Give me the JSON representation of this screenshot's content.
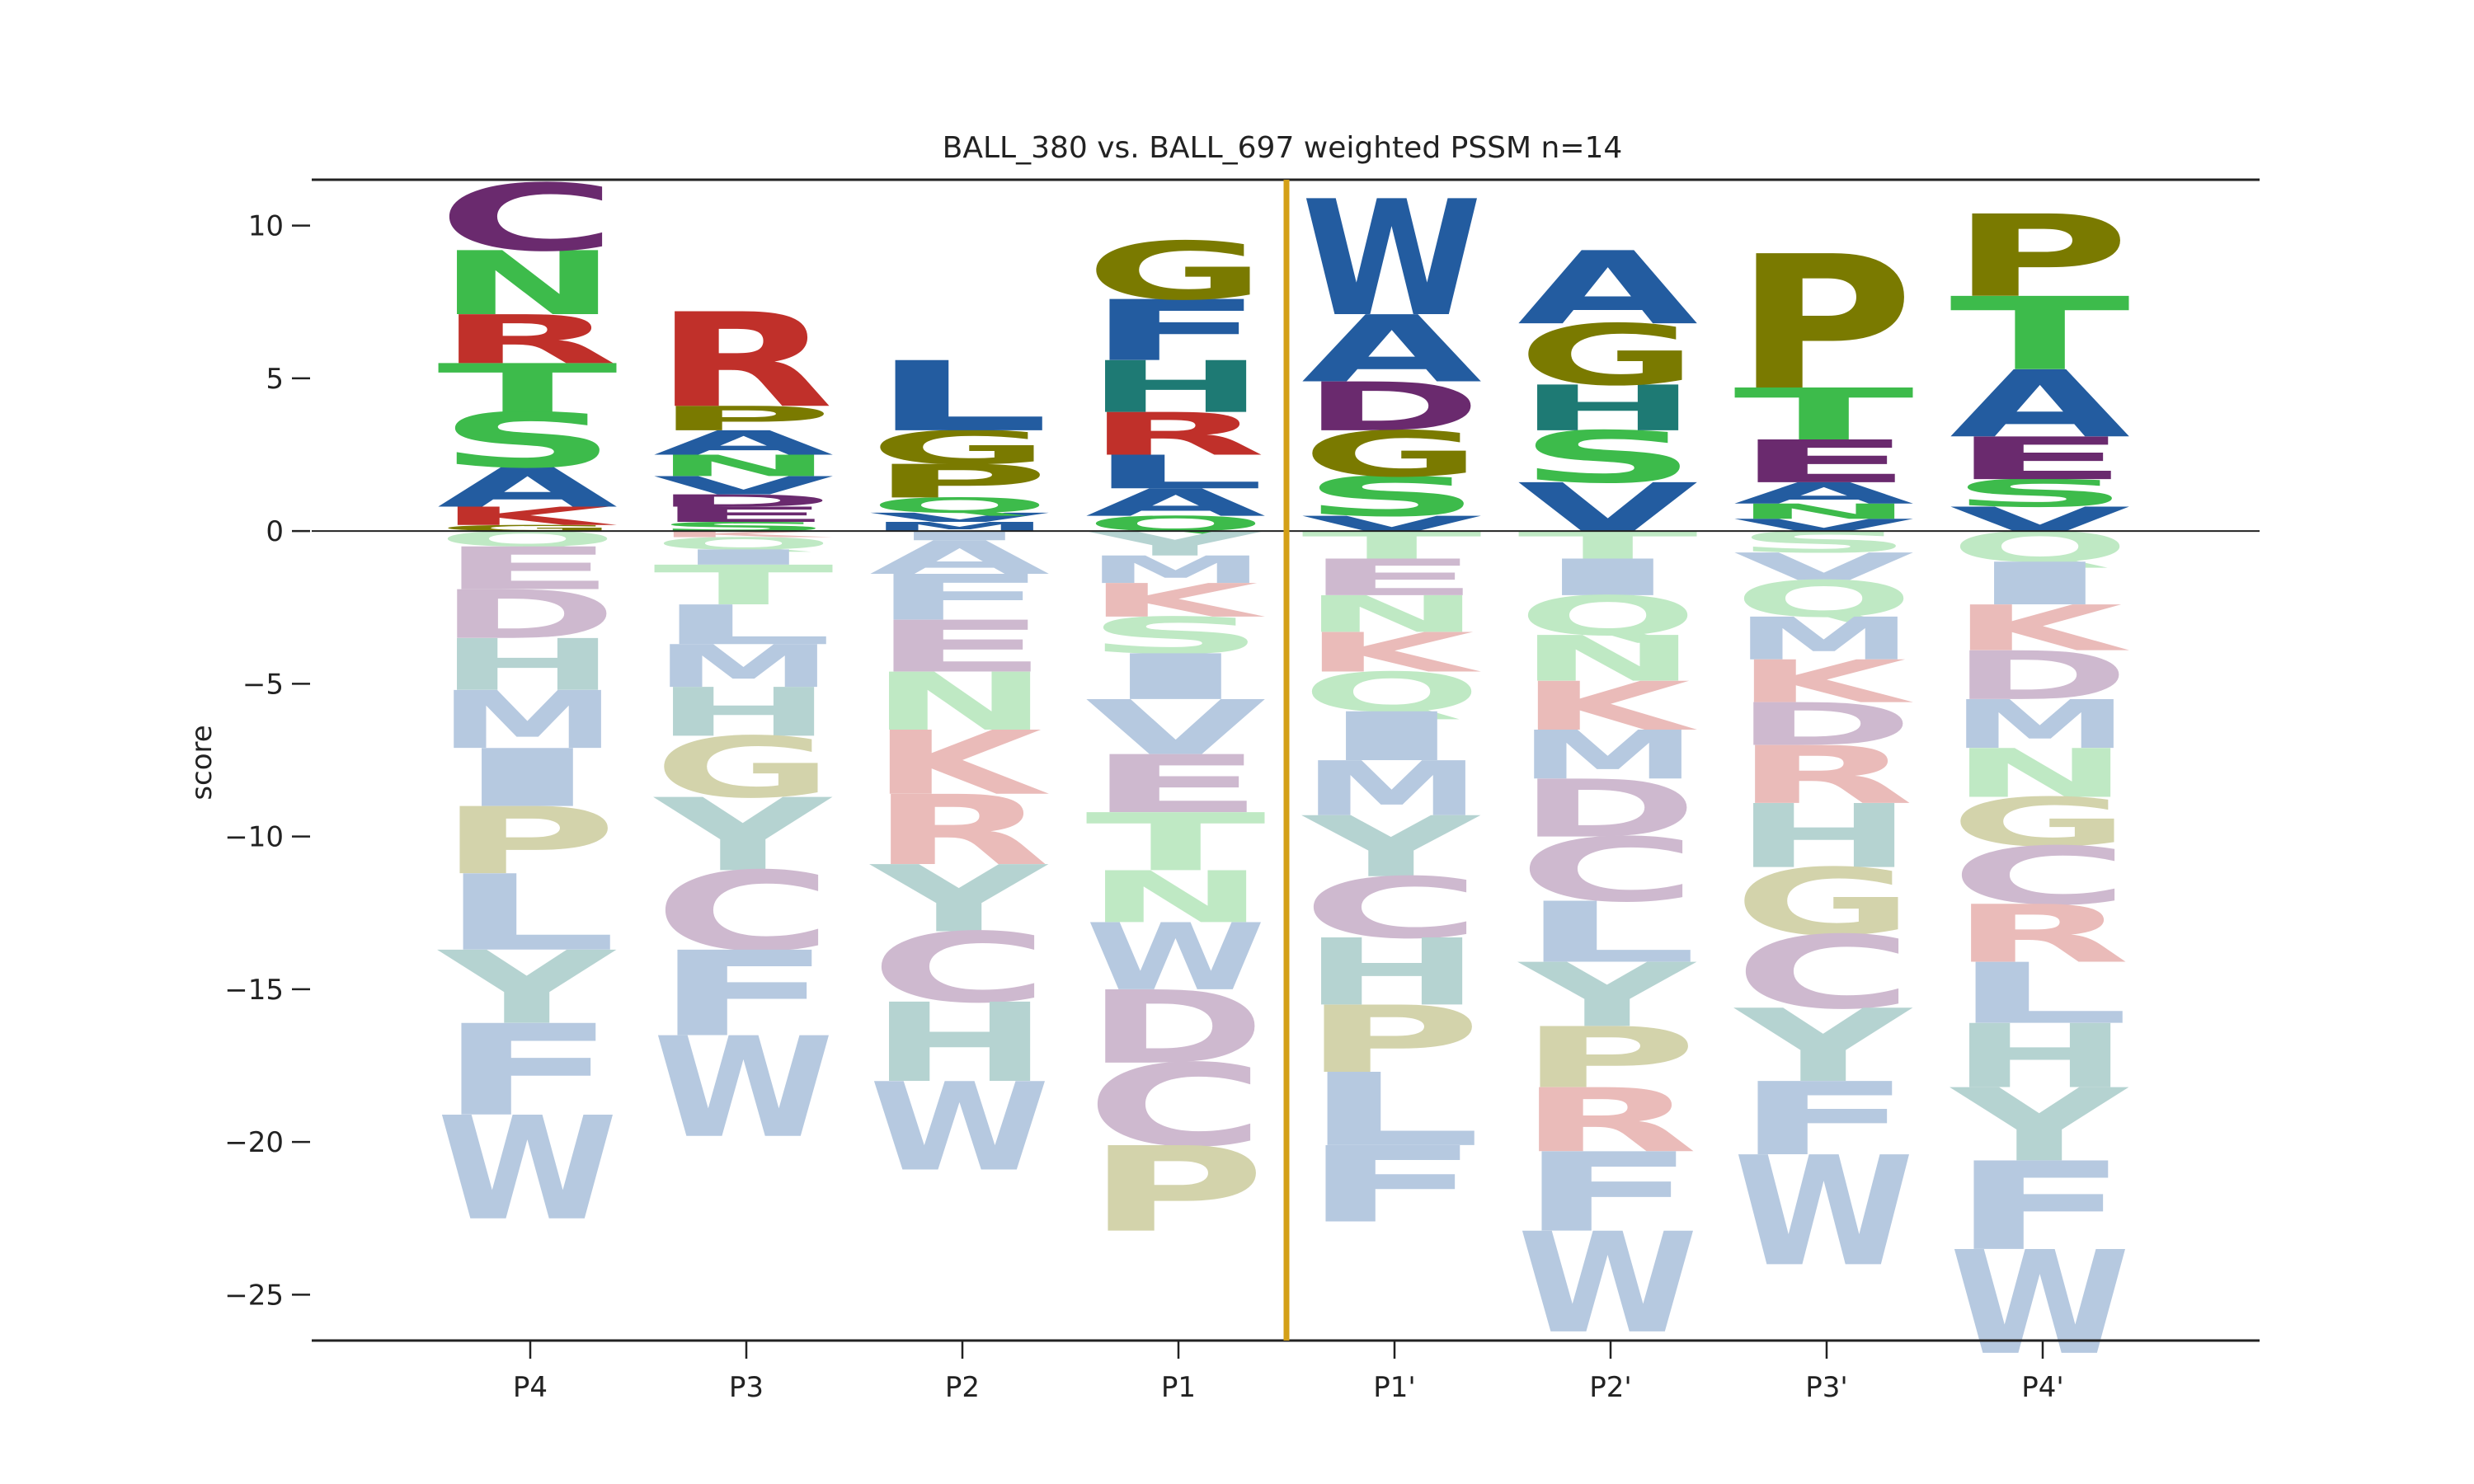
{
  "chart_data": {
    "type": "sequence-logo",
    "title": "BALL_380 vs. BALL_697 weighted PSSM n=14",
    "ylabel": "score",
    "xlabel": "",
    "ylim": [
      -26.5,
      11.5
    ],
    "yticks": [
      10,
      5,
      0,
      -5,
      -10,
      -15,
      -20,
      -25
    ],
    "ytick_labels": [
      "10",
      "5",
      "0",
      "−5",
      "−10",
      "−15",
      "−20",
      "−25"
    ],
    "cleavage_line_color": "#D4A017",
    "colors": {
      "A": "#235CA0",
      "C": "#6A2A6E",
      "D": "#6A2A6E",
      "E": "#6A2A6E",
      "F": "#235CA0",
      "G": "#7A7A00",
      "H": "#1E7A74",
      "I": "#235CA0",
      "K": "#C0302A",
      "L": "#235CA0",
      "M": "#235CA0",
      "N": "#3DBB4B",
      "P": "#7A7A00",
      "Q": "#3DBB4B",
      "R": "#C0302A",
      "S": "#3DBB4B",
      "T": "#3DBB4B",
      "V": "#235CA0",
      "W": "#235CA0",
      "Y": "#1E7A74"
    },
    "positions": [
      {
        "name": "P4",
        "positive": [
          [
            "G",
            0.2
          ],
          [
            "K",
            0.6
          ],
          [
            "A",
            1.3
          ],
          [
            "S",
            1.8
          ],
          [
            "T",
            1.6
          ],
          [
            "R",
            1.6
          ],
          [
            "N",
            2.1
          ],
          [
            "C",
            2.2
          ]
        ],
        "negative": [
          [
            "Q",
            0.5
          ],
          [
            "E",
            1.4
          ],
          [
            "D",
            1.6
          ],
          [
            "H",
            1.7
          ],
          [
            "M",
            1.9
          ],
          [
            "I",
            1.9
          ],
          [
            "P",
            2.2
          ],
          [
            "L",
            2.5
          ],
          [
            "Y",
            2.4
          ],
          [
            "F",
            3.0
          ],
          [
            "W",
            3.4
          ]
        ]
      },
      {
        "name": "P3",
        "positive": [
          [
            "S",
            0.3
          ],
          [
            "E",
            0.5
          ],
          [
            "D",
            0.4
          ],
          [
            "V",
            0.6
          ],
          [
            "N",
            0.7
          ],
          [
            "A",
            0.8
          ],
          [
            "P",
            0.8
          ],
          [
            "R",
            3.1
          ]
        ],
        "negative": [
          [
            "K",
            0.2
          ],
          [
            "Q",
            0.4
          ],
          [
            "I",
            0.5
          ],
          [
            "T",
            1.3
          ],
          [
            "L",
            1.3
          ],
          [
            "M",
            1.4
          ],
          [
            "H",
            1.6
          ],
          [
            "G",
            2.0
          ],
          [
            "Y",
            2.4
          ],
          [
            "C",
            2.6
          ],
          [
            "F",
            2.8
          ],
          [
            "W",
            3.3
          ]
        ]
      },
      {
        "name": "P2",
        "positive": [
          [
            "M",
            0.3
          ],
          [
            "V",
            0.3
          ],
          [
            "Q",
            0.5
          ],
          [
            "P",
            1.1
          ],
          [
            "G",
            1.1
          ],
          [
            "L",
            2.3
          ]
        ],
        "negative": [
          [
            "I",
            0.3
          ],
          [
            "A",
            1.1
          ],
          [
            "F",
            1.5
          ],
          [
            "E",
            1.7
          ],
          [
            "N",
            1.9
          ],
          [
            "K",
            2.1
          ],
          [
            "R",
            2.3
          ],
          [
            "Y",
            2.2
          ],
          [
            "C",
            2.3
          ],
          [
            "H",
            2.6
          ],
          [
            "W",
            2.9
          ]
        ]
      },
      {
        "name": "P1",
        "positive": [
          [
            "Q",
            0.5
          ],
          [
            "A",
            0.9
          ],
          [
            "L",
            1.1
          ],
          [
            "R",
            1.4
          ],
          [
            "H",
            1.7
          ],
          [
            "F",
            2.0
          ],
          [
            "G",
            1.9
          ]
        ],
        "negative": [
          [
            "Y",
            0.8
          ],
          [
            "M",
            0.9
          ],
          [
            "K",
            1.1
          ],
          [
            "S",
            1.2
          ],
          [
            "I",
            1.5
          ],
          [
            "V",
            1.8
          ],
          [
            "E",
            1.9
          ],
          [
            "T",
            1.9
          ],
          [
            "N",
            1.7
          ],
          [
            "W",
            2.2
          ],
          [
            "D",
            2.4
          ],
          [
            "C",
            2.7
          ],
          [
            "P",
            2.8
          ]
        ]
      },
      {
        "name": "P1'",
        "positive": [
          [
            "V",
            0.5
          ],
          [
            "S",
            1.3
          ],
          [
            "G",
            1.5
          ],
          [
            "D",
            1.6
          ],
          [
            "A",
            2.2
          ],
          [
            "W",
            3.8
          ]
        ],
        "negative": [
          [
            "T",
            0.9
          ],
          [
            "E",
            1.2
          ],
          [
            "N",
            1.2
          ],
          [
            "K",
            1.3
          ],
          [
            "Q",
            1.3
          ],
          [
            "I",
            1.6
          ],
          [
            "M",
            1.8
          ],
          [
            "Y",
            2.0
          ],
          [
            "C",
            2.0
          ],
          [
            "H",
            2.2
          ],
          [
            "P",
            2.2
          ],
          [
            "L",
            2.4
          ],
          [
            "F",
            2.5
          ]
        ]
      },
      {
        "name": "P2'",
        "positive": [
          [
            "V",
            1.6
          ],
          [
            "S",
            1.7
          ],
          [
            "H",
            1.5
          ],
          [
            "G",
            2.0
          ],
          [
            "A",
            2.4
          ]
        ],
        "negative": [
          [
            "T",
            0.9
          ],
          [
            "I",
            1.2
          ],
          [
            "Q",
            1.3
          ],
          [
            "N",
            1.5
          ],
          [
            "K",
            1.6
          ],
          [
            "M",
            1.6
          ],
          [
            "D",
            1.9
          ],
          [
            "C",
            2.1
          ],
          [
            "L",
            2.0
          ],
          [
            "Y",
            2.1
          ],
          [
            "P",
            2.0
          ],
          [
            "R",
            2.1
          ],
          [
            "F",
            2.6
          ],
          [
            "W",
            3.3
          ]
        ]
      },
      {
        "name": "P3'",
        "positive": [
          [
            "V",
            0.4
          ],
          [
            "N",
            0.5
          ],
          [
            "A",
            0.7
          ],
          [
            "E",
            1.4
          ],
          [
            "T",
            1.7
          ],
          [
            "P",
            4.4
          ]
        ],
        "negative": [
          [
            "S",
            0.7
          ],
          [
            "V",
            0.9
          ],
          [
            "Q",
            1.2
          ],
          [
            "M",
            1.4
          ],
          [
            "K",
            1.4
          ],
          [
            "D",
            1.4
          ],
          [
            "R",
            1.9
          ],
          [
            "H",
            2.1
          ],
          [
            "G",
            2.2
          ],
          [
            "C",
            2.4
          ],
          [
            "Y",
            2.4
          ],
          [
            "F",
            2.4
          ],
          [
            "W",
            3.6
          ]
        ]
      },
      {
        "name": "P4'",
        "positive": [
          [
            "V",
            0.8
          ],
          [
            "S",
            0.9
          ],
          [
            "E",
            1.4
          ],
          [
            "A",
            2.2
          ],
          [
            "T",
            2.4
          ],
          [
            "P",
            2.7
          ]
        ],
        "negative": [
          [
            "Q",
            1.0
          ],
          [
            "I",
            1.4
          ],
          [
            "K",
            1.5
          ],
          [
            "D",
            1.6
          ],
          [
            "M",
            1.6
          ],
          [
            "N",
            1.6
          ],
          [
            "G",
            1.6
          ],
          [
            "C",
            1.9
          ],
          [
            "R",
            1.9
          ],
          [
            "L",
            2.0
          ],
          [
            "H",
            2.1
          ],
          [
            "Y",
            2.4
          ],
          [
            "F",
            2.9
          ],
          [
            "W",
            3.4
          ]
        ]
      }
    ]
  }
}
